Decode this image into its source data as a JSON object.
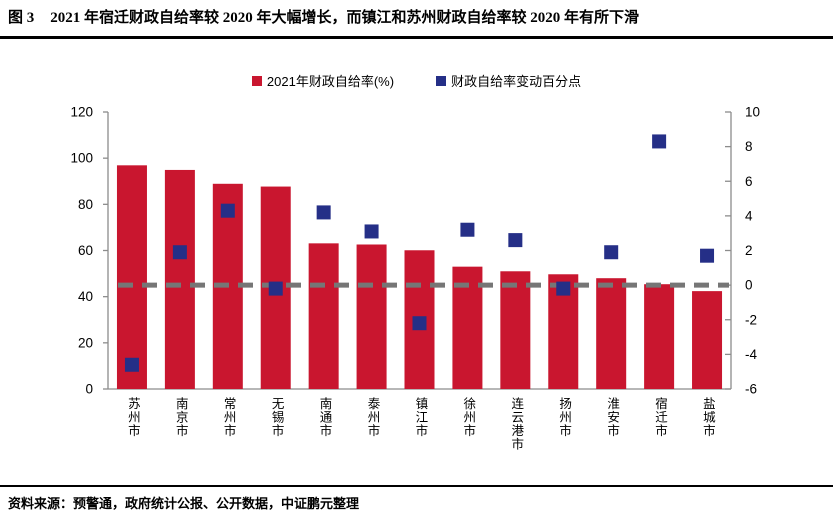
{
  "header": {
    "figure_label": "图 3",
    "title": "2021 年宿迁财政自给率较 2020 年大幅增长，而镇江和苏州财政自给率较 2020 年有所下滑"
  },
  "footer": {
    "source": "资料来源：预警通，政府统计公报、公开数据，中证鹏元整理"
  },
  "colors": {
    "bar_red": "#C9162F",
    "marker_navy": "#252F87",
    "axis_gray": "#8C8C8C",
    "zero_line_gray": "#767676",
    "text_black": "#000000"
  },
  "chart_data": {
    "type": "bar",
    "subtype": "combo-bar-left-axis-with-square-markers-right-axis",
    "title": "2021 年宿迁财政自给率较 2020 年大幅增长，而镇江和苏州财政自给率较 2020 年有所下滑",
    "categories": [
      "苏州市",
      "南京市",
      "常州市",
      "无锡市",
      "南通市",
      "泰州市",
      "镇江市",
      "徐州市",
      "连云港市",
      "扬州市",
      "淮安市",
      "宿迁市",
      "盐城市"
    ],
    "series": [
      {
        "name": "2021年财政自给率(%)",
        "type": "bar",
        "axis": "left",
        "color": "#C9162F",
        "values": [
          96.9,
          94.9,
          88.9,
          87.7,
          63.1,
          62.6,
          60.1,
          53.0,
          51.0,
          49.7,
          48.0,
          45.4,
          42.4
        ]
      },
      {
        "name": "财政自给率变动百分点",
        "type": "scatter-square",
        "axis": "right",
        "color": "#252F87",
        "values": [
          -4.6,
          1.9,
          4.3,
          -0.2,
          4.2,
          3.1,
          -2.2,
          3.2,
          2.6,
          -0.2,
          1.9,
          8.3,
          1.7
        ]
      }
    ],
    "left_axis": {
      "min": 0,
      "max": 120,
      "step": 20
    },
    "right_axis": {
      "min": -6,
      "max": 10,
      "step": 2
    },
    "zero_line": {
      "axis": "right",
      "value": 0,
      "style": "dashed",
      "color": "#767676"
    },
    "legend_position": "top-center",
    "grid": "off"
  }
}
